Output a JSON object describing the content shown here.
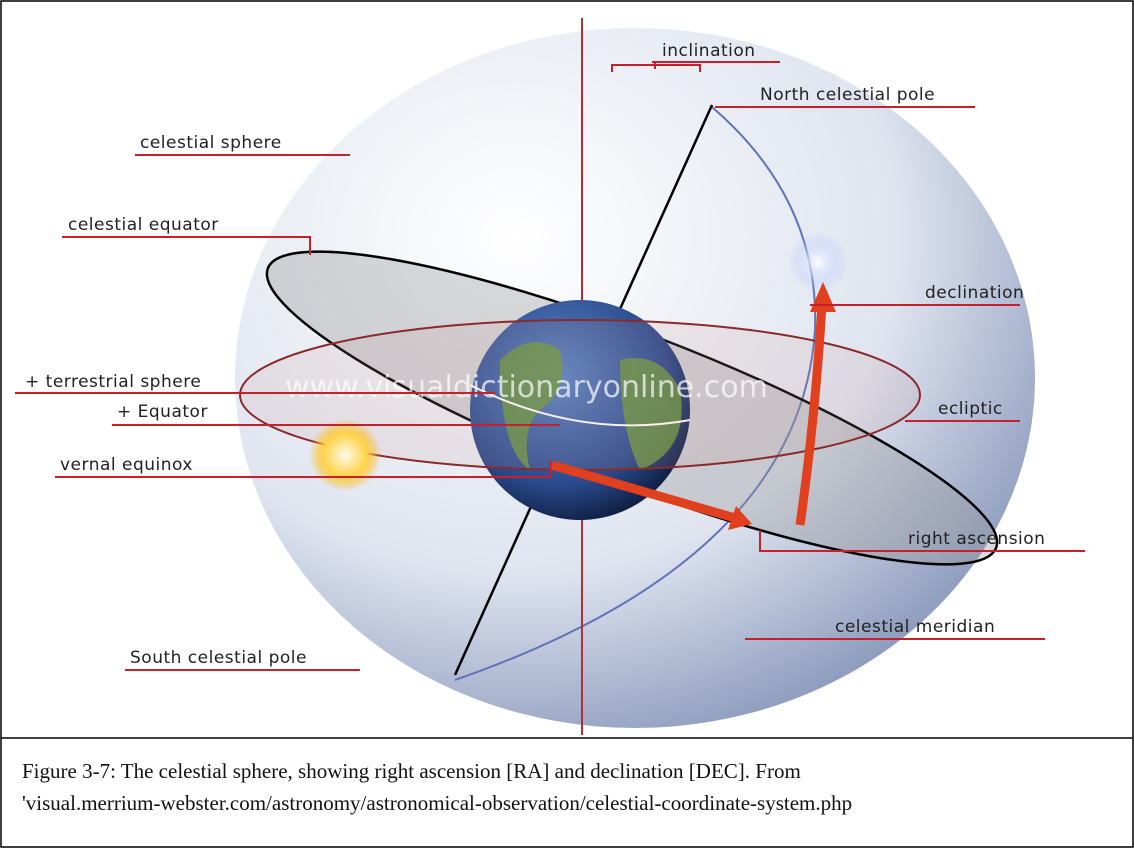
{
  "labels": [
    "inclination",
    "North celestial pole",
    "celestial sphere",
    "celestial equator",
    "declination",
    "+ terrestrial sphere",
    "+ Equator",
    "ecliptic",
    "vernal equinox",
    "right ascension",
    "celestial meridian",
    "South celestial pole"
  ],
  "watermark": "www.visualdictionaryonline.com",
  "caption": [
    "Figure 3-7: The celestial sphere, showing right ascension [RA] and declination [DEC].  From",
    "'visual.merrium-webster.com/astronomy/astronomical-observation/celestial-coordinate-system.php"
  ]
}
